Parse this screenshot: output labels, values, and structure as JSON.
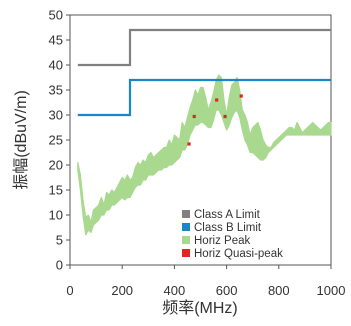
{
  "chart_data": {
    "type": "line",
    "xlabel": "频率(MHz)",
    "ylabel": "振幅(dBuV/m)",
    "xlim": [
      0,
      1000
    ],
    "ylim": [
      0,
      50
    ],
    "xticks": [
      "0",
      "200",
      "400",
      "600",
      "800",
      "1000"
    ],
    "yticks": [
      "0",
      "5",
      "10",
      "15",
      "20",
      "25",
      "30",
      "35",
      "40",
      "45",
      "50"
    ],
    "grid": false,
    "legend_position": "bottom-right",
    "series": [
      {
        "name": "Class A Limit",
        "kind": "step",
        "color": "#808080",
        "x": [
          30,
          230,
          230,
          1000
        ],
        "y": [
          40,
          40,
          47,
          47
        ]
      },
      {
        "name": "Class B Limit",
        "kind": "step",
        "color": "#1a86c8",
        "x": [
          30,
          230,
          230,
          1000
        ],
        "y": [
          30,
          30,
          37,
          37
        ]
      },
      {
        "name": "Horiz Peak",
        "kind": "band",
        "color": "#a8d98f",
        "x": [
          30,
          40,
          50,
          60,
          70,
          80,
          90,
          100,
          110,
          120,
          130,
          140,
          150,
          160,
          170,
          180,
          190,
          200,
          210,
          220,
          230,
          240,
          250,
          260,
          270,
          280,
          290,
          300,
          310,
          320,
          330,
          340,
          350,
          360,
          370,
          380,
          390,
          400,
          410,
          420,
          430,
          440,
          450,
          460,
          470,
          480,
          490,
          500,
          510,
          520,
          530,
          540,
          550,
          560,
          570,
          580,
          590,
          600,
          610,
          620,
          630,
          640,
          650,
          660,
          670,
          680,
          690,
          700,
          710,
          720,
          730,
          740,
          750,
          760,
          770,
          780,
          790,
          800,
          810,
          820,
          830,
          840,
          850,
          860,
          870,
          880,
          890,
          900,
          910,
          920,
          930,
          940,
          950,
          960,
          970,
          980,
          990,
          1000
        ],
        "y_high": [
          20.5,
          18,
          13,
          9.5,
          10,
          8.5,
          11,
          11.5,
          12,
          13.5,
          12,
          14.5,
          14,
          15,
          14.5,
          15.5,
          16.5,
          17.5,
          17,
          18,
          17,
          17.5,
          19.5,
          20.5,
          20,
          21,
          20.5,
          22,
          22.5,
          21.5,
          22,
          22.5,
          23,
          23.5,
          23.5,
          25,
          24,
          26,
          25.5,
          25,
          28.5,
          27.5,
          29.5,
          31.5,
          33,
          35,
          34,
          35.5,
          35.5,
          33.5,
          31,
          32.5,
          34.5,
          37,
          38,
          37.5,
          33,
          30,
          33.5,
          36,
          36.5,
          37.5,
          35,
          31,
          30,
          28.5,
          26,
          27.5,
          28,
          28.5,
          27,
          25,
          24,
          23.5,
          23.5,
          24.5,
          25,
          25.5,
          26,
          26.5,
          27,
          27.5,
          27.5,
          27,
          28.5,
          27.5,
          26.5,
          27,
          27.5,
          28,
          28.5,
          28,
          27.5,
          27,
          27.5,
          28,
          28.5,
          28.5
        ],
        "y_low": [
          19,
          15,
          10,
          6,
          7,
          6.5,
          8,
          8.5,
          9,
          10,
          10,
          11,
          11,
          12,
          12,
          12.5,
          13,
          13.5,
          13,
          13.5,
          13.5,
          14.5,
          15.5,
          16,
          16,
          17,
          17,
          18,
          18,
          18,
          18.5,
          19,
          19,
          19.5,
          19.5,
          20,
          20,
          20.5,
          21,
          21.5,
          23,
          23,
          24,
          26,
          27,
          28,
          28,
          28.5,
          28.5,
          28,
          27.5,
          27.5,
          29,
          31,
          31,
          30,
          28.5,
          27,
          28,
          29.5,
          30.5,
          31,
          29.5,
          27,
          25,
          24,
          22.5,
          22.5,
          22,
          21.5,
          21,
          21,
          21.5,
          22.5,
          23,
          23.5,
          24,
          24.5,
          25,
          25.5,
          26,
          26,
          26,
          26,
          26,
          26,
          26,
          26,
          26,
          26,
          26,
          26,
          26,
          26,
          26,
          26,
          26,
          26
        ]
      },
      {
        "name": "Horiz Quasi-peak",
        "kind": "scatter",
        "color": "#e0261f",
        "x": [
          456,
          476,
          562,
          594,
          656
        ],
        "y": [
          24.2,
          29.7,
          33.0,
          29.7,
          33.8
        ]
      }
    ]
  }
}
